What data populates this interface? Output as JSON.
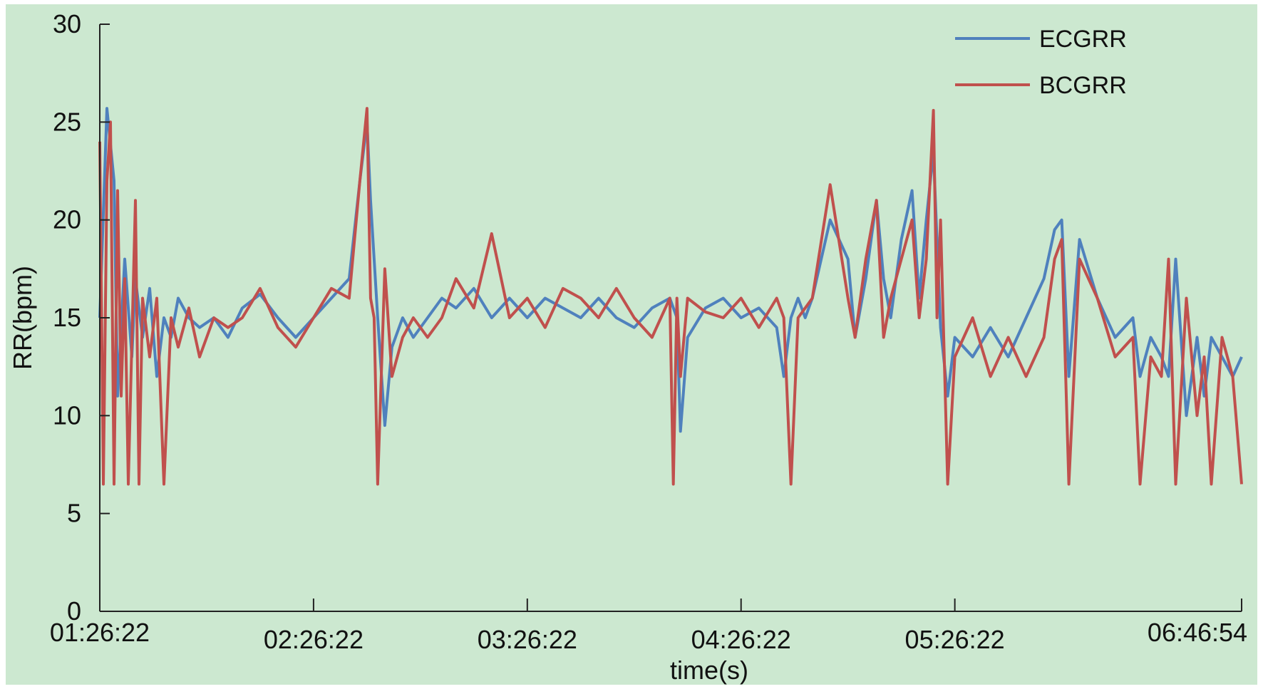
{
  "chart_data": {
    "type": "line",
    "title": "",
    "xlabel": "time(s)",
    "ylabel": "RR(bpm)",
    "x_tick_labels": [
      "01:26:22",
      "02:26:22",
      "03:26:22",
      "04:26:22",
      "05:26:22",
      "06:46:54"
    ],
    "y_ticks": [
      0,
      5,
      10,
      15,
      20,
      25,
      30
    ],
    "y_tick_labels": [
      "0",
      "5",
      "10",
      "15",
      "20",
      "25",
      "30"
    ],
    "ylim": [
      0,
      30
    ],
    "x_unit": "min",
    "xlim": [
      0,
      320.5
    ],
    "x_tick_positions": [
      0,
      60,
      120,
      180,
      240,
      320.5
    ],
    "grid": false,
    "legend_position": "top-right",
    "background_color": "#cce8d0",
    "series": [
      {
        "name": "ECGRR",
        "color": "#4f81bd",
        "x": [
          0,
          2,
          4,
          5,
          7,
          9,
          10,
          12,
          14,
          16,
          18,
          20,
          22,
          25,
          28,
          32,
          36,
          40,
          45,
          50,
          55,
          60,
          65,
          70,
          73,
          75,
          76,
          78,
          80,
          82,
          85,
          88,
          92,
          96,
          100,
          105,
          110,
          115,
          120,
          125,
          130,
          135,
          140,
          145,
          150,
          155,
          160,
          162,
          163,
          165,
          170,
          175,
          180,
          185,
          190,
          192,
          194,
          196,
          198,
          200,
          205,
          210,
          212,
          215,
          218,
          220,
          222,
          225,
          228,
          230,
          232,
          234,
          235,
          236,
          238,
          240,
          245,
          250,
          255,
          260,
          265,
          268,
          270,
          272,
          275,
          280,
          285,
          290,
          292,
          295,
          298,
          300,
          302,
          305,
          308,
          310,
          312,
          315,
          318,
          320.5
        ],
        "y": [
          15,
          25.7,
          22,
          11,
          18,
          13,
          17,
          14,
          16.5,
          12,
          15,
          14,
          16,
          15,
          14.5,
          15,
          14,
          15.5,
          16.2,
          15,
          14,
          15,
          16,
          17,
          22,
          25,
          21,
          15,
          9.5,
          13.5,
          15,
          14,
          15,
          16,
          15.5,
          16.5,
          15,
          16,
          15,
          16,
          15.5,
          15,
          16,
          15,
          14.5,
          15.5,
          16,
          15,
          9.2,
          14,
          15.5,
          16,
          15,
          15.5,
          14.5,
          12,
          15,
          16,
          15,
          16,
          20,
          18,
          14,
          17,
          21,
          17,
          15,
          19,
          21.5,
          16,
          20,
          23.5,
          19,
          14.5,
          11,
          14,
          13,
          14.5,
          13,
          15,
          17,
          19.5,
          20,
          12,
          19,
          16,
          14,
          15,
          12,
          14,
          13,
          12,
          18,
          10,
          14,
          11,
          14,
          13,
          12,
          13
        ]
      },
      {
        "name": "BCGRR",
        "color": "#c0504d",
        "x": [
          0,
          1,
          2,
          3,
          4,
          5,
          6,
          7,
          8,
          10,
          11,
          12,
          14,
          16,
          18,
          20,
          22,
          25,
          28,
          32,
          36,
          40,
          45,
          50,
          55,
          60,
          65,
          70,
          73,
          75,
          76,
          77,
          78,
          80,
          82,
          85,
          88,
          92,
          96,
          100,
          105,
          110,
          115,
          120,
          125,
          130,
          135,
          140,
          145,
          150,
          155,
          160,
          161,
          162,
          163,
          165,
          170,
          175,
          180,
          185,
          190,
          192,
          194,
          196,
          198,
          200,
          205,
          210,
          212,
          215,
          218,
          220,
          222,
          225,
          228,
          230,
          232,
          234,
          235,
          236,
          238,
          240,
          245,
          250,
          255,
          260,
          265,
          268,
          270,
          272,
          275,
          280,
          285,
          290,
          292,
          295,
          298,
          300,
          302,
          305,
          308,
          310,
          312,
          315,
          318,
          320.5
        ],
        "y": [
          24,
          6.5,
          22,
          25,
          6.5,
          21.5,
          11,
          17,
          6.5,
          21,
          6.5,
          16,
          13,
          16,
          6.5,
          15,
          13.5,
          15.5,
          13,
          15,
          14.5,
          15,
          16.5,
          14.5,
          13.5,
          15,
          16.5,
          16,
          22,
          25.7,
          16,
          15,
          6.5,
          17.5,
          12,
          14,
          15,
          14,
          15,
          17,
          15.5,
          19.3,
          15,
          16,
          14.5,
          16.5,
          16,
          15,
          16.5,
          15,
          14,
          16,
          6.5,
          16,
          12,
          16,
          15.3,
          15,
          16,
          14.5,
          16,
          15,
          6.5,
          15,
          15.5,
          16,
          21.8,
          16,
          14,
          18,
          21,
          14,
          16,
          18,
          20,
          15,
          18,
          25.6,
          15,
          20,
          6.5,
          13,
          15,
          12,
          14,
          12,
          14,
          18,
          19,
          6.5,
          18,
          16,
          13,
          14,
          6.5,
          13,
          12,
          18,
          6.5,
          16,
          10,
          13,
          6.5,
          14,
          12,
          6.5
        ]
      }
    ]
  }
}
